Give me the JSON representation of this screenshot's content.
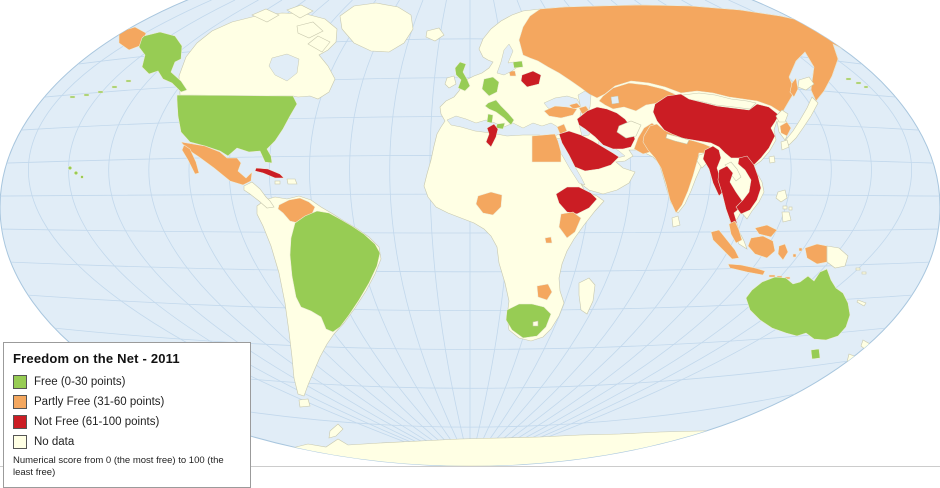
{
  "title": "Freedom on the Net - 2011",
  "legend": {
    "title": "Freedom on the Net - 2011",
    "items": [
      {
        "status": "free",
        "label": "Free (0-30 points)",
        "color": "#97CC54"
      },
      {
        "status": "partly_free",
        "label": "Partly Free (31-60 points)",
        "color": "#F4A75F"
      },
      {
        "status": "not_free",
        "label": "Not Free (61-100 points)",
        "color": "#CB1D24"
      },
      {
        "status": "no_data",
        "label": "No data",
        "color": "#FFFFE4"
      }
    ],
    "note": "Numerical score from 0 (the most free) to 100 (the least free)"
  },
  "colors": {
    "background": "#FFFFFF",
    "ocean": "#E1EDF7",
    "graticule": "#C2D8EC",
    "boundary": "#A8C6DE",
    "land": "#FFFFE4",
    "coast": "#C8C8AE",
    "footer_line": "#CCCCCC",
    "free": "#97CC54",
    "partly_free": "#F4A75F",
    "not_free": "#CB1D24",
    "no_data": "#FFFFE4"
  },
  "map": {
    "groups": [
      {
        "status": "free",
        "countries": [
          "United States",
          "United Kingdom",
          "Germany",
          "Italy",
          "Estonia",
          "Brazil",
          "South Africa",
          "Australia"
        ]
      },
      {
        "status": "partly_free",
        "countries": [
          "Mexico",
          "Venezuela",
          "Russia",
          "Turkey",
          "Georgia",
          "Azerbaijan",
          "Kazakhstan",
          "Jordan",
          "Egypt",
          "Nigeria",
          "Kenya",
          "Rwanda",
          "Zimbabwe",
          "Pakistan",
          "India",
          "South Korea",
          "Malaysia",
          "Indonesia"
        ]
      },
      {
        "status": "not_free",
        "countries": [
          "Cuba",
          "Belarus",
          "Tunisia",
          "Saudi Arabia",
          "Iran",
          "Ethiopia",
          "China",
          "Burma (Myanmar)",
          "Thailand",
          "Vietnam"
        ]
      },
      {
        "status": "no_data",
        "countries": [
          "Canada",
          "Greenland",
          "Iceland",
          "Ireland",
          "Mongolia",
          "Afghanistan",
          "Nepal",
          "Bangladesh",
          "Sri Lanka",
          "Laos",
          "North Korea",
          "Japan",
          "Taiwan",
          "Philippines",
          "Papua New Guinea",
          "New Zealand",
          "Madagascar",
          "Lesotho"
        ]
      }
    ]
  }
}
